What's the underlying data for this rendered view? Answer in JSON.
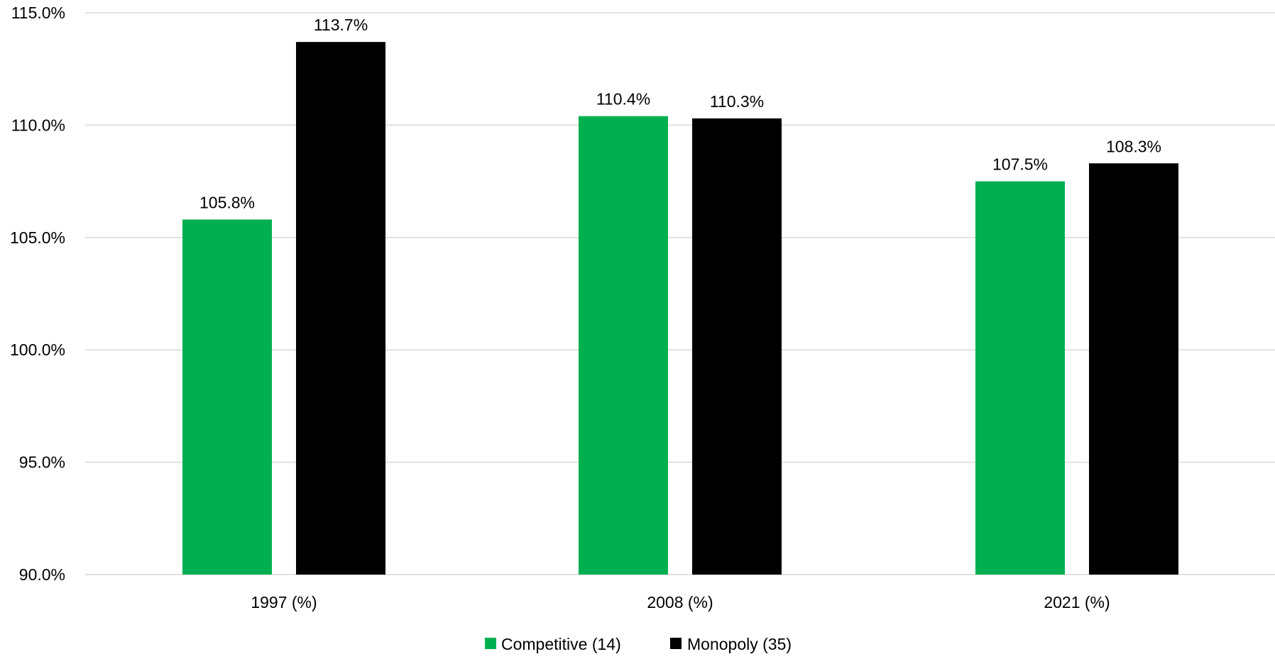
{
  "chart_data": {
    "type": "bar",
    "title": "",
    "xlabel": "",
    "ylabel": "",
    "categories": [
      "1997 (%)",
      "2008 (%)",
      "2021 (%)"
    ],
    "series": [
      {
        "name": "Competitive (14)",
        "color": "#00b050",
        "values": [
          105.8,
          110.4,
          107.5
        ],
        "labels": [
          "105.8%",
          "110.4%",
          "107.5%"
        ]
      },
      {
        "name": "Monopoly (35)",
        "color": "#000000",
        "values": [
          113.7,
          110.3,
          108.3
        ],
        "labels": [
          "113.7%",
          "110.3%",
          "108.3%"
        ]
      }
    ],
    "ylim": [
      90,
      115
    ],
    "yticks": [
      90,
      95,
      100,
      105,
      110,
      115
    ],
    "ytick_labels": [
      "90.0%",
      "95.0%",
      "100.0%",
      "105.0%",
      "110.0%",
      "115.0%"
    ],
    "grid": true,
    "legend_position": "bottom-center",
    "gridline_color": "#d9d9d9"
  }
}
